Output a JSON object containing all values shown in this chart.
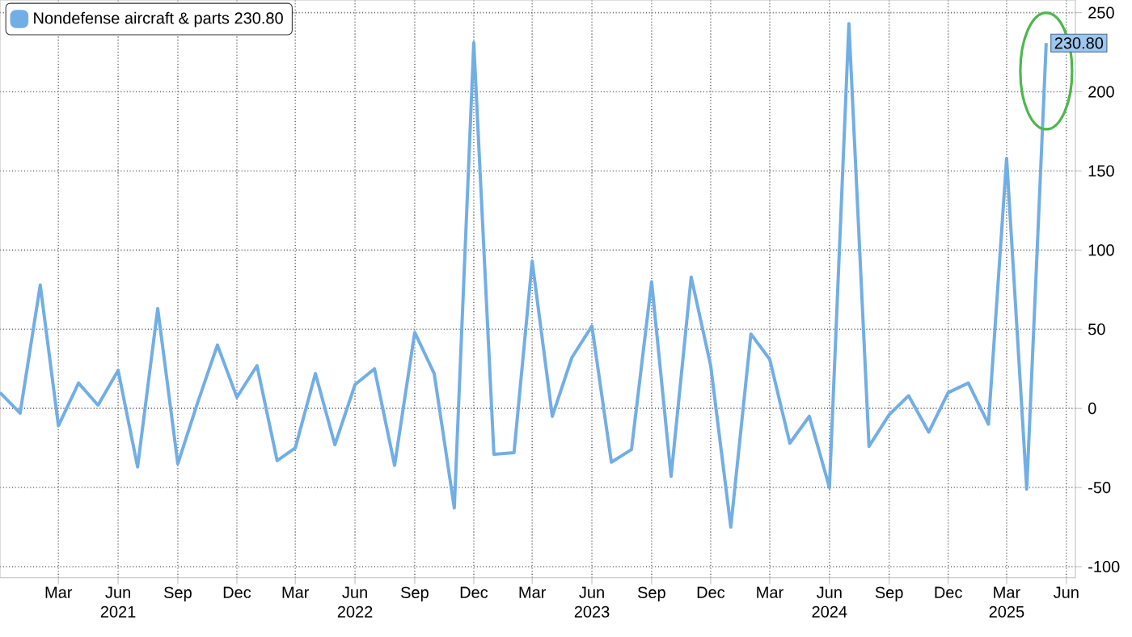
{
  "chart_data": {
    "type": "line",
    "x": [
      "2020-12",
      "2021-01",
      "2021-02",
      "2021-03",
      "2021-04",
      "2021-05",
      "2021-06",
      "2021-07",
      "2021-08",
      "2021-09",
      "2021-10",
      "2021-11",
      "2021-12",
      "2022-01",
      "2022-02",
      "2022-03",
      "2022-04",
      "2022-05",
      "2022-06",
      "2022-07",
      "2022-08",
      "2022-09",
      "2022-10",
      "2022-11",
      "2022-12",
      "2023-01",
      "2023-02",
      "2023-03",
      "2023-04",
      "2023-05",
      "2023-06",
      "2023-07",
      "2023-08",
      "2023-09",
      "2023-10",
      "2023-11",
      "2023-12",
      "2024-01",
      "2024-02",
      "2024-03",
      "2024-04",
      "2024-05",
      "2024-06",
      "2024-07",
      "2024-08",
      "2024-09",
      "2024-10",
      "2024-11",
      "2024-12",
      "2025-01",
      "2025-02",
      "2025-03",
      "2025-04",
      "2025-05"
    ],
    "series": [
      {
        "name": "Nondefense aircraft & parts 230.80",
        "color": "#72aee6",
        "values": [
          10,
          -3,
          78,
          -11,
          16,
          2,
          24,
          -37,
          63,
          -35,
          3,
          40,
          7,
          27,
          -33,
          -25,
          22,
          -23,
          15,
          25,
          -36,
          48,
          22,
          -63,
          231,
          -29,
          -28,
          93,
          -5,
          32,
          52,
          -34,
          -26,
          80,
          -43,
          83,
          27,
          -75,
          47,
          31,
          -22,
          -5,
          -50,
          243,
          -24,
          -4,
          8,
          -15,
          10,
          16,
          -10,
          158,
          -51,
          230.8
        ],
        "value_labels": [
          null,
          null,
          null,
          null,
          null,
          null,
          null,
          null,
          null,
          null,
          null,
          null,
          null,
          null,
          null,
          null,
          null,
          null,
          null,
          null,
          null,
          null,
          null,
          null,
          null,
          null,
          null,
          null,
          null,
          null,
          null,
          null,
          null,
          null,
          null,
          null,
          null,
          null,
          null,
          null,
          null,
          null,
          null,
          null,
          null,
          null,
          null,
          null,
          null,
          null,
          null,
          null,
          null,
          "230.80"
        ]
      }
    ],
    "xlim": [
      "2020-12",
      "2025-06-15"
    ],
    "xticks": [
      {
        "value": "2021-03",
        "label": "Mar"
      },
      {
        "value": "2021-06",
        "label": "Jun 2021"
      },
      {
        "value": "2021-09",
        "label": "Sep"
      },
      {
        "value": "2021-12",
        "label": "Dec"
      },
      {
        "value": "2022-03",
        "label": "Mar"
      },
      {
        "value": "2022-06",
        "label": "Jun 2022"
      },
      {
        "value": "2022-09",
        "label": "Sep"
      },
      {
        "value": "2022-12",
        "label": "Dec"
      },
      {
        "value": "2023-03",
        "label": "Mar"
      },
      {
        "value": "2023-06",
        "label": "Jun 2023"
      },
      {
        "value": "2023-09",
        "label": "Sep"
      },
      {
        "value": "2023-12",
        "label": "Dec"
      },
      {
        "value": "2024-03",
        "label": "Mar"
      },
      {
        "value": "2024-06",
        "label": "Jun 2024"
      },
      {
        "value": "2024-09",
        "label": "Sep"
      },
      {
        "value": "2024-12",
        "label": "Dec"
      },
      {
        "value": "2025-03",
        "label": "Mar 2025"
      },
      {
        "value": "2025-06",
        "label": "Jun"
      }
    ],
    "ylim": [
      -107,
      258
    ],
    "yticks": [
      -100,
      -50,
      0,
      50,
      100,
      150,
      200,
      250
    ],
    "grid": true,
    "legend": "top left"
  }
}
